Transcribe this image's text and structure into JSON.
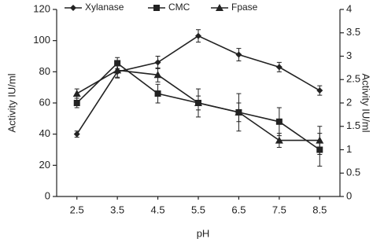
{
  "chart_data": {
    "type": "line",
    "x_label": "pH",
    "y_label": "Activity IU/ml",
    "y2_label": "Activity IU/ml",
    "categories": [
      "2.5",
      "3.5",
      "4.5",
      "5.5",
      "6.5",
      "7.5",
      "8.5"
    ],
    "series": [
      {
        "name": "Xylanase",
        "color": "#222222",
        "marker": "diamond",
        "values": [
          40,
          80,
          86,
          103,
          91,
          83,
          68
        ],
        "errors": [
          2,
          4,
          4,
          4,
          4,
          3,
          3
        ]
      },
      {
        "name": "CMC",
        "color": "#222222",
        "marker": "square",
        "axis": "y2",
        "values": [
          2.0,
          2.85,
          2.2,
          2.0,
          1.8,
          1.6,
          1.0
        ],
        "errors": [
          0.1,
          0.12,
          0.2,
          0.15,
          0.4,
          0.3,
          0.35
        ]
      },
      {
        "name": "Fpase",
        "color": "#222222",
        "marker": "triangle",
        "axis": "y2",
        "values": [
          2.2,
          2.7,
          2.6,
          2.0,
          1.8,
          1.2,
          1.2
        ],
        "errors": [
          0.1,
          0.15,
          0.15,
          0.3,
          0.2,
          0.15,
          0.3
        ]
      }
    ],
    "ylim": [
      0,
      120
    ],
    "yticks": [
      0,
      20,
      40,
      60,
      80,
      100,
      120
    ],
    "y2lim": [
      0,
      4
    ],
    "y2ticks": [
      0,
      0.5,
      1,
      1.5,
      2,
      2.5,
      3,
      3.5,
      4
    ]
  }
}
